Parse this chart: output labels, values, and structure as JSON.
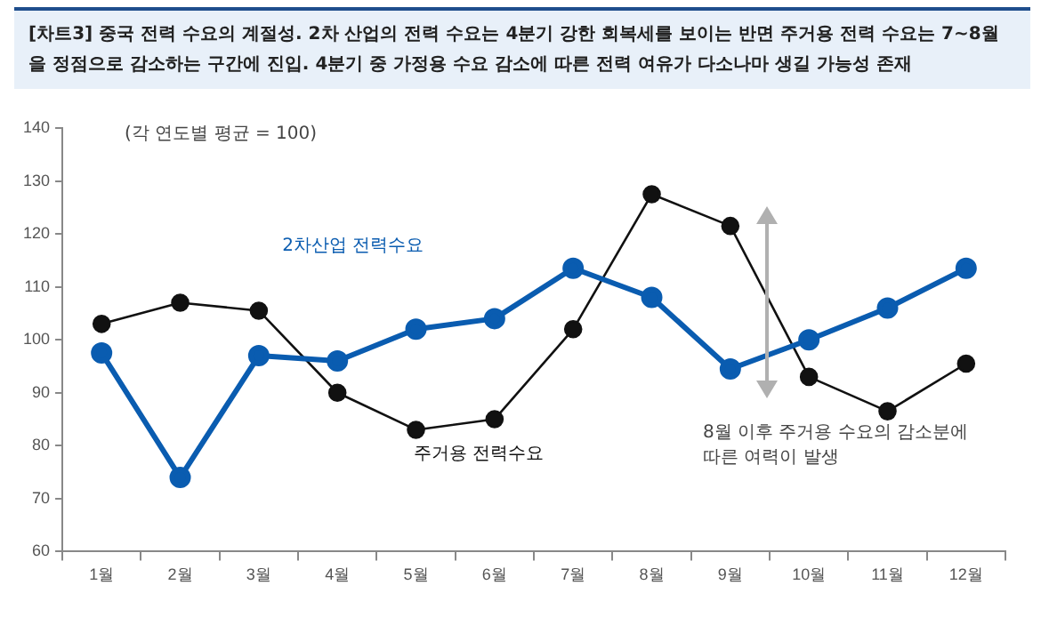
{
  "chart_data": {
    "type": "line",
    "title": "[차트3] 중국 전력 수요의 계절성. 2차 산업의 전력 수요는 4분기 강한 회복세를 보이는 반면 주거용 전력 수요는 7~8월을 정점으로 감소하는 구간에 진입. 4분기 중 가정용 수요 감소에 따른 전력 여유가 다소나마 생길 가능성 존재",
    "categories": [
      "1월",
      "2월",
      "3월",
      "4월",
      "5월",
      "6월",
      "7월",
      "8월",
      "9월",
      "10월",
      "11월",
      "12월"
    ],
    "series": [
      {
        "name": "2차산업 전력수요",
        "color": "#0a5cb0",
        "values": [
          97.5,
          74,
          97,
          96,
          102,
          104,
          113.5,
          108,
          94.5,
          100,
          106,
          113.5
        ]
      },
      {
        "name": "주거용 전력수요",
        "color": "#111111",
        "values": [
          103,
          107,
          105.5,
          90,
          83,
          85,
          102,
          127.5,
          121.5,
          93,
          86.5,
          95.5
        ]
      }
    ],
    "ylim": [
      60,
      140
    ],
    "yticks": [
      60,
      70,
      80,
      90,
      100,
      110,
      120,
      130,
      140
    ],
    "grid": false,
    "legend": false,
    "marker": "circle",
    "line_style": "solid",
    "annotations": [
      "(각 연도별 평균 = 100)",
      "8월 이후 주거용 수요의 감소분에 따른 여력이 발생"
    ]
  }
}
